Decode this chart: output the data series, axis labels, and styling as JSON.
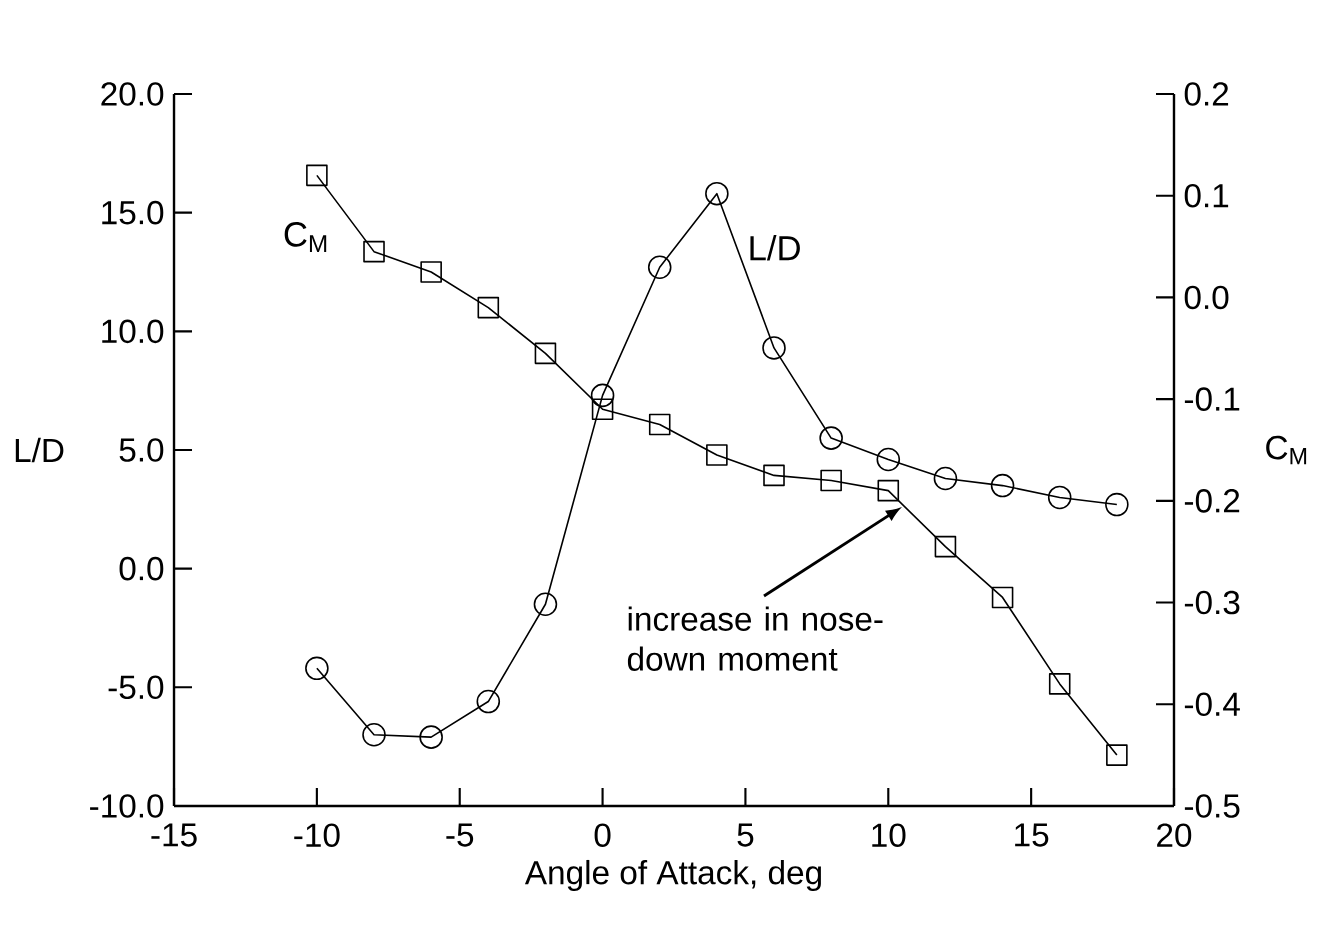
{
  "chart_data": {
    "type": "line",
    "xlabel": "Angle of Attack, deg",
    "ylabel": "L/D",
    "y2label": "C$_{M}$",
    "x": [
      -10,
      -8,
      -6,
      -4,
      -2,
      0,
      2,
      4,
      6,
      8,
      10,
      12,
      14,
      16,
      18
    ],
    "series": [
      {
        "name": "L/D",
        "color": "#000000",
        "marker": "circle",
        "values": [
          -4.2,
          -7.0,
          -7.1,
          -5.6,
          -1.5,
          7.3,
          12.7,
          15.8,
          9.3,
          5.5,
          4.6,
          3.8,
          3.5,
          3.0,
          2.7
        ]
      },
      {
        "name": "C$_{M}$",
        "color": "#000000",
        "marker": "square",
        "axis": "y2",
        "values": [
          0.12,
          0.045,
          0.025,
          -0.01,
          -0.055,
          -0.11,
          -0.125,
          -0.155,
          -0.175,
          -0.18,
          -0.19,
          -0.245,
          -0.295,
          -0.38,
          -0.45
        ]
      }
    ],
    "xlim": [
      -15,
      20
    ],
    "xticks": [
      -15,
      -10,
      -5,
      0,
      5,
      10,
      15,
      20
    ],
    "ylim": [
      -10,
      20
    ],
    "yticks": [
      {
        "value": -10,
        "label": "-10.0"
      },
      {
        "value": -5,
        "label": "-5.0"
      },
      {
        "value": 0,
        "label": "0.0"
      },
      {
        "value": 5,
        "label": "5.0"
      },
      {
        "value": 10,
        "label": "10.0"
      },
      {
        "value": 15,
        "label": "15.0"
      },
      {
        "value": 20,
        "label": "20.0"
      }
    ],
    "y2lim": [
      -0.5,
      0.2
    ],
    "y2ticks": [
      -0.5,
      -0.4,
      -0.3,
      -0.2,
      -0.1,
      {
        "value": 0,
        "label": "0.0"
      },
      0.1,
      0.2
    ],
    "grid": false,
    "legend": false,
    "line_style": "solid",
    "annotations": [
      "increase in nose-down moment"
    ]
  }
}
